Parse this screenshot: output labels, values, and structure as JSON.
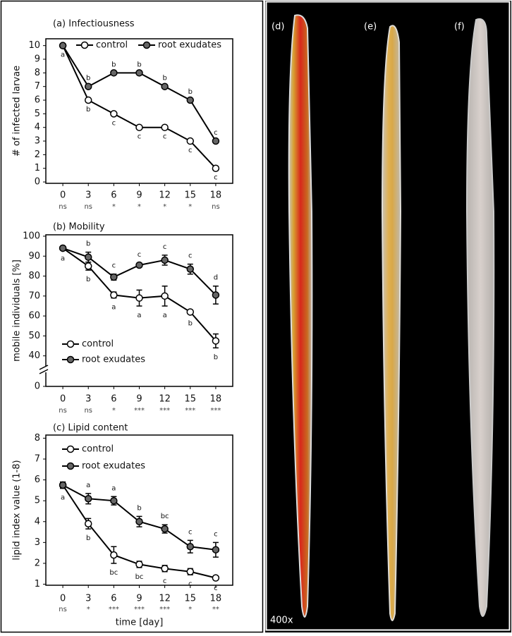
{
  "chart_data": [
    {
      "type": "line",
      "title": "(a) Infectiousness",
      "ylabel": "# of infected larvae",
      "x": [
        0,
        3,
        6,
        9,
        12,
        15,
        18
      ],
      "xlim": [
        -2,
        20
      ],
      "xticks": [
        0,
        3,
        6,
        9,
        12,
        15,
        18
      ],
      "ylim": [
        -0.1,
        10.5
      ],
      "yticks": [
        0,
        1,
        2,
        3,
        4,
        5,
        6,
        7,
        8,
        9,
        10
      ],
      "significance": [
        "ns",
        "ns",
        "*",
        "*",
        "*",
        "*",
        "ns"
      ],
      "legend": "top",
      "series": [
        {
          "name": "control",
          "color": "#ffffff",
          "values": [
            10,
            6,
            5,
            4,
            4,
            3,
            1
          ],
          "letters": [
            "a",
            "b",
            "c",
            "c",
            "c",
            "c",
            "c"
          ]
        },
        {
          "name": "root exudates",
          "color": "#666666",
          "values": [
            10,
            7,
            8,
            8,
            7,
            6,
            3
          ],
          "letters": [
            null,
            "b",
            "b",
            "b",
            "b",
            "b",
            "c"
          ]
        }
      ]
    },
    {
      "type": "line",
      "title": "(b) Mobility",
      "ylabel": "mobile individuals [%]",
      "x": [
        0,
        3,
        6,
        9,
        12,
        15,
        18
      ],
      "xlim": [
        -2,
        20
      ],
      "xticks": [
        0,
        3,
        6,
        9,
        12,
        15,
        18
      ],
      "ylim": [
        0,
        100.7
      ],
      "y_break": [
        0,
        36
      ],
      "yticks": [
        0,
        40,
        50,
        60,
        70,
        80,
        90,
        100
      ],
      "significance": [
        "ns",
        "ns",
        "*",
        "***",
        "***",
        "***",
        "***"
      ],
      "legend": "bottom-left",
      "series": [
        {
          "name": "control",
          "color": "#ffffff",
          "values": [
            94,
            85,
            70.5,
            69,
            70,
            62,
            47.5
          ],
          "errors": [
            0.5,
            2,
            1.5,
            4,
            5,
            1,
            3.5
          ],
          "letters": [
            "a",
            "b",
            "a",
            "a",
            "a",
            "b",
            "b"
          ]
        },
        {
          "name": "root exudates",
          "color": "#666666",
          "values": [
            94,
            89.5,
            79.5,
            85.5,
            88,
            83.5,
            70.5
          ],
          "errors": [
            0.5,
            2.5,
            1.5,
            1,
            2.5,
            2.5,
            4.5
          ],
          "letters": [
            null,
            "b",
            "c",
            "c",
            "c",
            "c",
            "d"
          ]
        }
      ]
    },
    {
      "type": "line",
      "title": "(c) Lipid content",
      "ylabel": "lipid index value (1-8)",
      "xlabel": "time [day]",
      "x": [
        0,
        3,
        6,
        9,
        12,
        15,
        18
      ],
      "xlim": [
        -2,
        20
      ],
      "xticks": [
        0,
        3,
        6,
        9,
        12,
        15,
        18
      ],
      "ylim": [
        0.95,
        8.15
      ],
      "yticks": [
        1,
        2,
        3,
        4,
        5,
        6,
        7,
        8
      ],
      "significance": [
        "ns",
        "*",
        "***",
        "***",
        "***",
        "*",
        "**"
      ],
      "legend": "top-left",
      "series": [
        {
          "name": "control",
          "color": "#ffffff",
          "values": [
            5.75,
            3.9,
            2.4,
            1.95,
            1.75,
            1.6,
            1.3
          ],
          "errors": [
            0.15,
            0.25,
            0.4,
            0.15,
            0.15,
            0.15,
            0.05
          ],
          "letters": [
            "a",
            "b",
            "bc",
            "bc",
            "c",
            "c",
            "c"
          ]
        },
        {
          "name": "root exudates",
          "color": "#666666",
          "values": [
            5.75,
            5.1,
            5.0,
            4.0,
            3.65,
            2.8,
            2.65
          ],
          "errors": [
            0.15,
            0.25,
            0.2,
            0.25,
            0.2,
            0.3,
            0.35
          ],
          "letters": [
            null,
            "a",
            "a",
            "b",
            "bc",
            "c",
            "c"
          ]
        }
      ]
    }
  ],
  "image_panel": {
    "labels": [
      "(d)",
      "(e)",
      "(f)"
    ],
    "magnification": "400x"
  }
}
